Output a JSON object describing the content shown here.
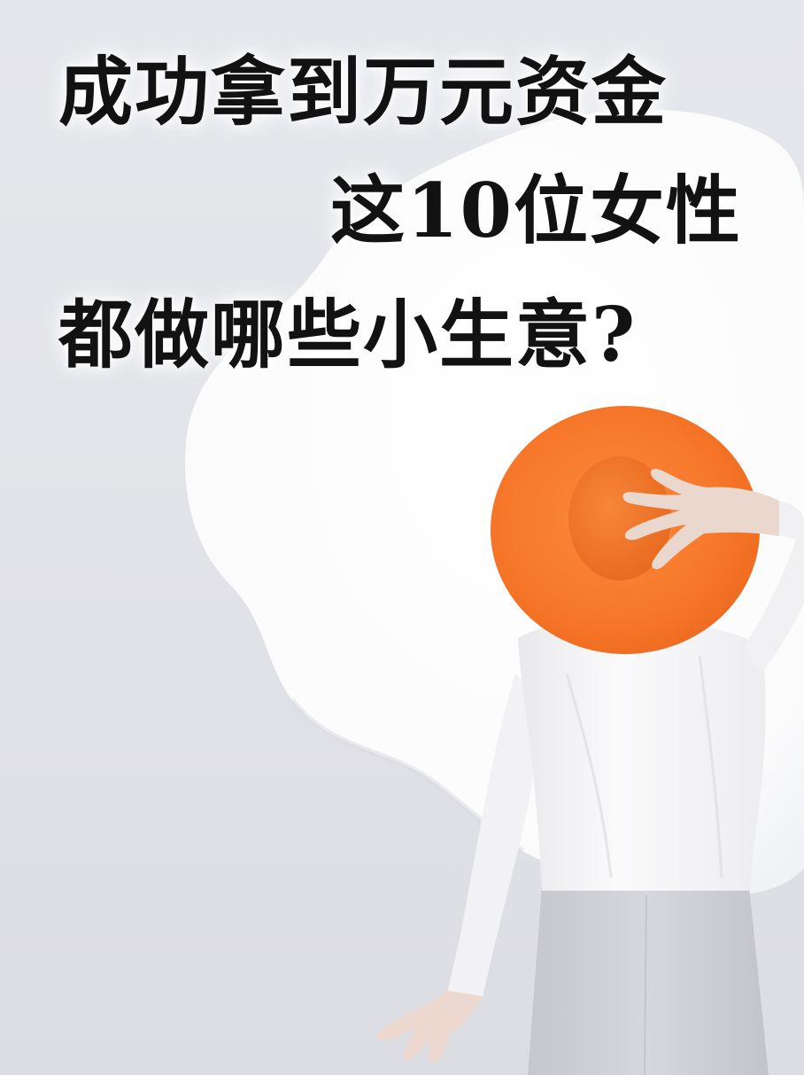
{
  "headline": {
    "line1": "成功拿到万元资金",
    "line2": "这10位女性",
    "line3": "都做哪些小生意?"
  },
  "colors": {
    "background": "#e3e4e9",
    "splash": "#fdfdfe",
    "hat": "#f7772a",
    "shirt": "#f7f7f8",
    "trousers": "#cfd0d6",
    "skin": "#ead7cd",
    "text": "#121212"
  }
}
